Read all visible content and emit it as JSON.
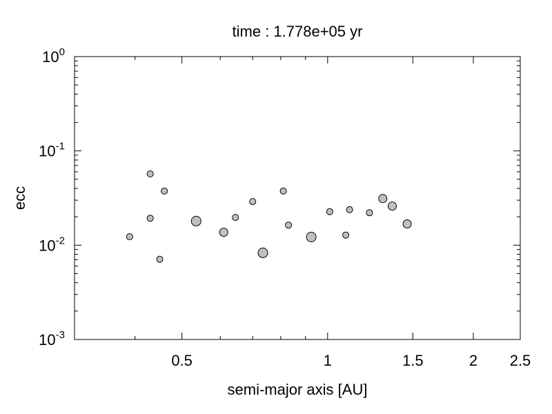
{
  "chart_data": {
    "type": "scatter",
    "title": "time : 1.778e+05 yr",
    "xlabel": "semi-major axis [AU]",
    "ylabel": "ecc",
    "x_scale": "log",
    "y_scale": "log",
    "xlim": [
      0.3,
      2.5
    ],
    "ylim": [
      0.001,
      1
    ],
    "x_ticks": [
      {
        "value": 0.5,
        "label": "0.5"
      },
      {
        "value": 1,
        "label": "1"
      },
      {
        "value": 1.5,
        "label": "1.5"
      },
      {
        "value": 2,
        "label": "2"
      },
      {
        "value": 2.5,
        "label": "2.5"
      }
    ],
    "y_ticks": [
      {
        "value": 0.001,
        "base": "10",
        "exp": "-3"
      },
      {
        "value": 0.01,
        "base": "10",
        "exp": "-2"
      },
      {
        "value": 0.1,
        "base": "10",
        "exp": "-1"
      },
      {
        "value": 1,
        "base": "10",
        "exp": "0"
      }
    ],
    "grid": false,
    "legend": "none",
    "marker_color": "#c0c0c0",
    "marker_edge_color": "#000000",
    "points": [
      {
        "x": 0.39,
        "y": 0.0123,
        "size": "small"
      },
      {
        "x": 0.43,
        "y": 0.057,
        "size": "small"
      },
      {
        "x": 0.43,
        "y": 0.0193,
        "size": "small"
      },
      {
        "x": 0.45,
        "y": 0.0071,
        "size": "small"
      },
      {
        "x": 0.46,
        "y": 0.0375,
        "size": "small"
      },
      {
        "x": 0.535,
        "y": 0.018,
        "size": "large"
      },
      {
        "x": 0.61,
        "y": 0.0137,
        "size": "medium"
      },
      {
        "x": 0.645,
        "y": 0.0197,
        "size": "small"
      },
      {
        "x": 0.7,
        "y": 0.029,
        "size": "small"
      },
      {
        "x": 0.735,
        "y": 0.0083,
        "size": "large"
      },
      {
        "x": 0.81,
        "y": 0.0375,
        "size": "small"
      },
      {
        "x": 0.83,
        "y": 0.0163,
        "size": "small"
      },
      {
        "x": 0.925,
        "y": 0.0122,
        "size": "large"
      },
      {
        "x": 1.01,
        "y": 0.0227,
        "size": "small"
      },
      {
        "x": 1.09,
        "y": 0.0128,
        "size": "small"
      },
      {
        "x": 1.11,
        "y": 0.0238,
        "size": "small"
      },
      {
        "x": 1.22,
        "y": 0.0221,
        "size": "small"
      },
      {
        "x": 1.3,
        "y": 0.0312,
        "size": "medium"
      },
      {
        "x": 1.36,
        "y": 0.026,
        "size": "medium"
      },
      {
        "x": 1.46,
        "y": 0.0168,
        "size": "medium"
      }
    ]
  }
}
